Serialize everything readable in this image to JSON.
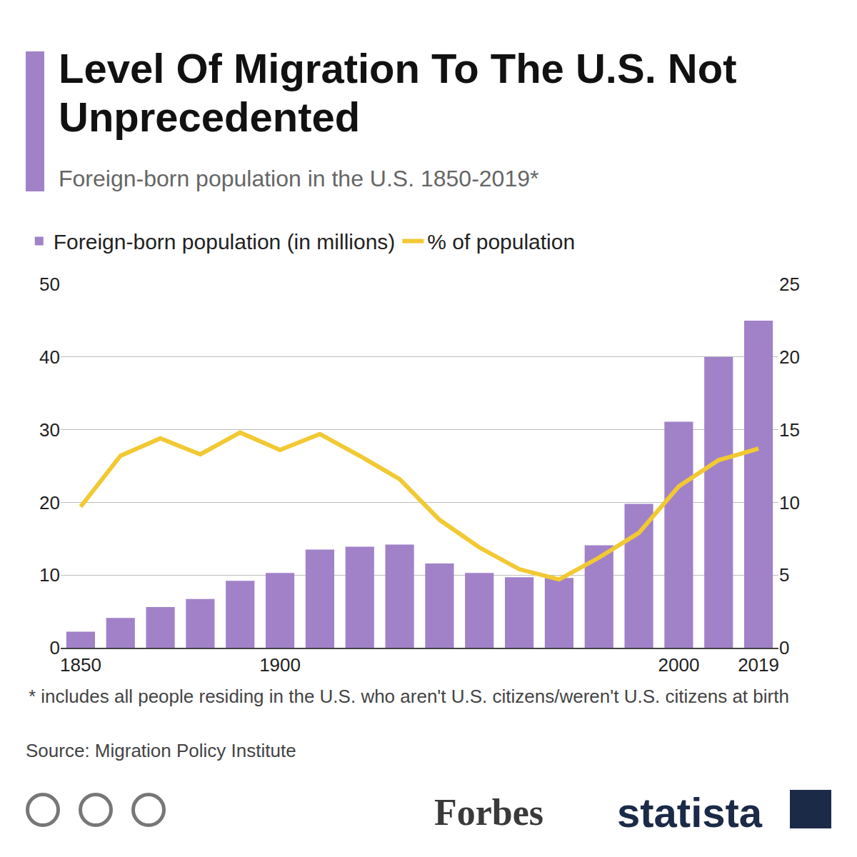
{
  "header": {
    "title": "Level Of Migration To The U.S. Not Unprecedented",
    "subtitle": "Foreign-born population in the U.S. 1850-2019*"
  },
  "chart_data": {
    "type": "bar",
    "categories": [
      "1850",
      null,
      null,
      null,
      null,
      "1900",
      null,
      null,
      null,
      null,
      null,
      null,
      null,
      null,
      null,
      "2000",
      null,
      "2019"
    ],
    "series": [
      {
        "name": "Foreign-born population (in millions)",
        "type": "bar",
        "color": "#a182c8",
        "values": [
          2.2,
          4.1,
          5.6,
          6.7,
          9.2,
          10.3,
          13.5,
          13.9,
          14.2,
          11.6,
          10.3,
          9.7,
          9.6,
          14.1,
          19.8,
          31.1,
          40.0,
          45.0
        ]
      },
      {
        "name": "% of population",
        "type": "line",
        "color": "#f1c932",
        "axis": "y2",
        "values": [
          9.7,
          13.2,
          14.4,
          13.3,
          14.8,
          13.6,
          14.7,
          13.2,
          11.6,
          8.8,
          6.9,
          5.4,
          4.7,
          6.2,
          7.9,
          11.1,
          12.9,
          13.7
        ]
      }
    ],
    "ylim": [
      0,
      50
    ],
    "yticks": [
      0,
      10,
      20,
      30,
      40,
      50
    ],
    "y2lim": [
      0,
      25
    ],
    "y2ticks": [
      0,
      5,
      10,
      15,
      20,
      25
    ],
    "grid": true,
    "legend": "top"
  },
  "footer": {
    "footnote": "* includes all people residing in the U.S. who aren't U.S. citizens/weren't U.S. citizens at birth",
    "source": "Source: Migration Policy Institute",
    "brands": [
      "Forbes",
      "statista"
    ]
  }
}
